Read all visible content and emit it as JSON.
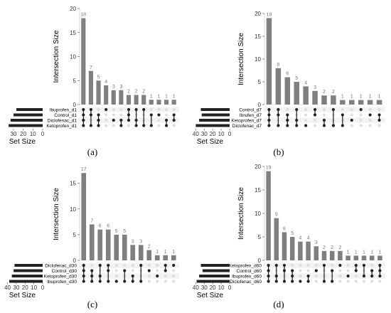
{
  "figure": {
    "panel_labels": [
      "(a)",
      "(b)",
      "(c)",
      "(d)"
    ]
  },
  "colors": {
    "bar": "#7f7f7f",
    "set_bar": "#222222",
    "dot_on": "#222222",
    "dot_off": "#dedede",
    "value_label": "#777777"
  },
  "chart_data": [
    {
      "type": "bar",
      "subtype": "upset",
      "panel": "(a)",
      "ylabel": "Intersection Size",
      "xlabel_sets": "Set Size",
      "ylim": [
        0,
        20
      ],
      "y_ticks": [
        0,
        5,
        10,
        15,
        20
      ],
      "sets": [
        "Ibuprofen_d1",
        "Control_d1",
        "Diclofenac_d1",
        "Ketoprofen_d1"
      ],
      "set_sizes": [
        27,
        30,
        33,
        35
      ],
      "set_size_ticks": [
        30,
        20,
        10,
        0
      ],
      "set_size_max": 38,
      "intersections": [
        {
          "value": 18,
          "sets": [
            0,
            1,
            2,
            3
          ]
        },
        {
          "value": 7,
          "sets": [
            0,
            1,
            3
          ]
        },
        {
          "value": 5,
          "sets": [
            1,
            2,
            3
          ]
        },
        {
          "value": 4,
          "sets": [
            0
          ]
        },
        {
          "value": 3,
          "sets": [
            2
          ]
        },
        {
          "value": 3,
          "sets": [
            2,
            3
          ]
        },
        {
          "value": 2,
          "sets": [
            0,
            1,
            2
          ]
        },
        {
          "value": 2,
          "sets": [
            0,
            2,
            3
          ]
        },
        {
          "value": 2,
          "sets": [
            0,
            3
          ]
        },
        {
          "value": 1,
          "sets": [
            1,
            3
          ]
        },
        {
          "value": 1,
          "sets": [
            1
          ]
        },
        {
          "value": 1,
          "sets": [
            2,
            3
          ]
        },
        {
          "value": 1,
          "sets": [
            1,
            2
          ]
        }
      ]
    },
    {
      "type": "bar",
      "subtype": "upset",
      "panel": "(b)",
      "ylabel": "Intersection Size",
      "xlabel_sets": "Set Size",
      "ylim": [
        0,
        20
      ],
      "y_ticks": [
        0,
        5,
        10,
        15,
        20
      ],
      "sets": [
        "Control_d7",
        "Ibrufen_d7",
        "Ketoprofen_d7",
        "Diclofenac_d7"
      ],
      "set_sizes": [
        34,
        33,
        36,
        40
      ],
      "set_size_ticks": [
        40,
        30,
        20,
        10,
        0
      ],
      "set_size_max": 42,
      "intersections": [
        {
          "value": 19,
          "sets": [
            0,
            1,
            2,
            3
          ]
        },
        {
          "value": 8,
          "sets": [
            0,
            1,
            3
          ]
        },
        {
          "value": 6,
          "sets": [
            1,
            2,
            3
          ]
        },
        {
          "value": 5,
          "sets": [
            0,
            2,
            3
          ]
        },
        {
          "value": 4,
          "sets": [
            3
          ]
        },
        {
          "value": 3,
          "sets": [
            0,
            1
          ]
        },
        {
          "value": 2,
          "sets": [
            2,
            3
          ]
        },
        {
          "value": 2,
          "sets": [
            0,
            3
          ]
        },
        {
          "value": 1,
          "sets": [
            1,
            3
          ]
        },
        {
          "value": 1,
          "sets": [
            2
          ]
        },
        {
          "value": 1,
          "sets": [
            0
          ]
        },
        {
          "value": 1,
          "sets": [
            1
          ]
        },
        {
          "value": 1,
          "sets": [
            1,
            2
          ]
        }
      ]
    },
    {
      "type": "bar",
      "subtype": "upset",
      "panel": "(c)",
      "ylabel": "Intersection Size",
      "xlabel_sets": "Set Size",
      "ylim": [
        0,
        18
      ],
      "y_ticks": [
        0,
        5,
        10,
        15
      ],
      "sets": [
        "Diclofenac_d30",
        "Control_d30",
        "Ketoprofen_d30",
        "Ibuprofen_d30"
      ],
      "set_sizes": [
        32,
        33,
        35,
        38
      ],
      "set_size_ticks": [
        40,
        30,
        20,
        10,
        0
      ],
      "set_size_max": 42,
      "intersections": [
        {
          "value": 17,
          "sets": [
            0,
            1,
            2,
            3
          ]
        },
        {
          "value": 7,
          "sets": [
            1,
            2,
            3
          ]
        },
        {
          "value": 6,
          "sets": [
            0,
            2,
            3
          ]
        },
        {
          "value": 6,
          "sets": [
            0,
            1,
            3
          ]
        },
        {
          "value": 5,
          "sets": [
            3
          ]
        },
        {
          "value": 5,
          "sets": [
            1,
            3
          ]
        },
        {
          "value": 3,
          "sets": [
            2,
            3
          ]
        },
        {
          "value": 3,
          "sets": [
            0,
            3
          ]
        },
        {
          "value": 2,
          "sets": [
            1
          ]
        },
        {
          "value": 1,
          "sets": [
            2
          ]
        },
        {
          "value": 1,
          "sets": [
            0,
            1
          ]
        },
        {
          "value": 1,
          "sets": [
            0
          ]
        }
      ]
    },
    {
      "type": "bar",
      "subtype": "upset",
      "panel": "(d)",
      "ylabel": "Intersection Size",
      "xlabel_sets": "Set Size",
      "ylim": [
        0,
        20
      ],
      "y_ticks": [
        0,
        5,
        10,
        15,
        20
      ],
      "sets": [
        "Ketoprofen_d60",
        "Control_d60",
        "Ibuprofen_d60",
        "Diclofenac_d60"
      ],
      "set_sizes": [
        34,
        32,
        36,
        39
      ],
      "set_size_ticks": [
        40,
        30,
        20,
        10,
        0
      ],
      "set_size_max": 42,
      "intersections": [
        {
          "value": 19,
          "sets": [
            0,
            1,
            2,
            3
          ]
        },
        {
          "value": 9,
          "sets": [
            0,
            2,
            3
          ]
        },
        {
          "value": 6,
          "sets": [
            0,
            1,
            3
          ]
        },
        {
          "value": 5,
          "sets": [
            1,
            2,
            3
          ]
        },
        {
          "value": 4,
          "sets": [
            3
          ]
        },
        {
          "value": 4,
          "sets": [
            2,
            3
          ]
        },
        {
          "value": 3,
          "sets": [
            1
          ]
        },
        {
          "value": 2,
          "sets": [
            0,
            3
          ]
        },
        {
          "value": 2,
          "sets": [
            1,
            3
          ]
        },
        {
          "value": 2,
          "sets": [
            0
          ]
        },
        {
          "value": 1,
          "sets": [
            2
          ]
        },
        {
          "value": 1,
          "sets": [
            0,
            1
          ]
        },
        {
          "value": 1,
          "sets": [
            0,
            2
          ]
        },
        {
          "value": 1,
          "sets": [
            1,
            2
          ]
        },
        {
          "value": 1,
          "sets": [
            0,
            1,
            2
          ]
        }
      ]
    }
  ]
}
